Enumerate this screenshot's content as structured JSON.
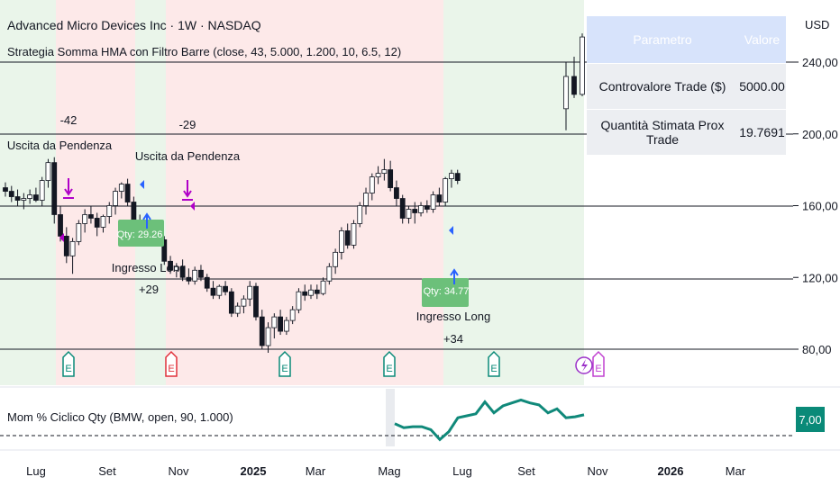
{
  "header": {
    "title": "Advanced Micro Devices Inc · 1W · NASDAQ",
    "subtitle": "Strategia Somma HMA con Filtro Barre (close, 43, 5.000, 1.200, 10, 6.5, 12)",
    "currency": "USD"
  },
  "table": {
    "headers": [
      "Parametro",
      "Valore"
    ],
    "rows": [
      {
        "label": "Controvalore Trade ($)",
        "value": "5000.00"
      },
      {
        "label": "Quantità Stimata Prox Trade",
        "value": "19.7691"
      }
    ]
  },
  "indicator": {
    "label": "Mom % Ciclico Qty (BMW, open, 90, 1.000)",
    "value_badge": "7,00",
    "badge_color": "#0a8a78",
    "line_color": "#10897a"
  },
  "colors": {
    "up": "#ffffff",
    "down": "#131722",
    "green_zone": "#eaf5ea",
    "red_zone": "#fde9e9",
    "long_tag": "#6cc07a",
    "exit_marker": "#b000c8",
    "entry_arrow": "#2962ff"
  },
  "chart_data": {
    "type": "candlestick",
    "y_axis": {
      "ticks": [
        "80,00",
        "120,00",
        "160,00",
        "200,00",
        "240,00"
      ],
      "values": [
        80,
        120,
        160,
        200,
        240
      ],
      "ylim": [
        77,
        262
      ]
    },
    "x_axis": {
      "ticks": [
        "Lug",
        "Set",
        "Nov",
        "2025",
        "Mar",
        "Mag",
        "Lug",
        "Set",
        "Nov",
        "2026",
        "Mar"
      ],
      "bold": [
        "2025",
        "2026"
      ]
    },
    "candles": [
      {
        "o": 170,
        "h": 173,
        "l": 165,
        "c": 168
      },
      {
        "o": 168,
        "h": 171,
        "l": 162,
        "c": 165
      },
      {
        "o": 165,
        "h": 169,
        "l": 160,
        "c": 163
      },
      {
        "o": 163,
        "h": 167,
        "l": 158,
        "c": 164
      },
      {
        "o": 164,
        "h": 169,
        "l": 161,
        "c": 166
      },
      {
        "o": 166,
        "h": 170,
        "l": 162,
        "c": 163
      },
      {
        "o": 163,
        "h": 176,
        "l": 160,
        "c": 174
      },
      {
        "o": 174,
        "h": 186,
        "l": 170,
        "c": 184
      },
      {
        "o": 184,
        "h": 187,
        "l": 150,
        "c": 155
      },
      {
        "o": 155,
        "h": 160,
        "l": 140,
        "c": 143
      },
      {
        "o": 143,
        "h": 148,
        "l": 128,
        "c": 132
      },
      {
        "o": 132,
        "h": 142,
        "l": 122,
        "c": 140
      },
      {
        "o": 140,
        "h": 152,
        "l": 138,
        "c": 150
      },
      {
        "o": 150,
        "h": 158,
        "l": 145,
        "c": 155
      },
      {
        "o": 155,
        "h": 160,
        "l": 150,
        "c": 153
      },
      {
        "o": 153,
        "h": 156,
        "l": 143,
        "c": 148
      },
      {
        "o": 148,
        "h": 155,
        "l": 145,
        "c": 154
      },
      {
        "o": 154,
        "h": 162,
        "l": 150,
        "c": 160
      },
      {
        "o": 160,
        "h": 170,
        "l": 155,
        "c": 168
      },
      {
        "o": 168,
        "h": 173,
        "l": 164,
        "c": 172
      },
      {
        "o": 172,
        "h": 175,
        "l": 160,
        "c": 162
      },
      {
        "o": 162,
        "h": 165,
        "l": 147,
        "c": 150
      },
      {
        "o": 150,
        "h": 155,
        "l": 145,
        "c": 148
      },
      {
        "o": 148,
        "h": 152,
        "l": 142,
        "c": 145
      },
      {
        "o": 145,
        "h": 148,
        "l": 140,
        "c": 143
      },
      {
        "o": 143,
        "h": 146,
        "l": 138,
        "c": 141
      },
      {
        "o": 141,
        "h": 143,
        "l": 127,
        "c": 129
      },
      {
        "o": 129,
        "h": 132,
        "l": 122,
        "c": 124
      },
      {
        "o": 124,
        "h": 128,
        "l": 120,
        "c": 126
      },
      {
        "o": 126,
        "h": 130,
        "l": 118,
        "c": 120
      },
      {
        "o": 120,
        "h": 125,
        "l": 116,
        "c": 118
      },
      {
        "o": 118,
        "h": 126,
        "l": 116,
        "c": 124
      },
      {
        "o": 124,
        "h": 127,
        "l": 118,
        "c": 120
      },
      {
        "o": 120,
        "h": 122,
        "l": 112,
        "c": 114
      },
      {
        "o": 114,
        "h": 118,
        "l": 108,
        "c": 110
      },
      {
        "o": 110,
        "h": 116,
        "l": 108,
        "c": 115
      },
      {
        "o": 115,
        "h": 118,
        "l": 110,
        "c": 112
      },
      {
        "o": 112,
        "h": 114,
        "l": 98,
        "c": 100
      },
      {
        "o": 100,
        "h": 106,
        "l": 98,
        "c": 104
      },
      {
        "o": 104,
        "h": 110,
        "l": 100,
        "c": 108
      },
      {
        "o": 108,
        "h": 118,
        "l": 104,
        "c": 115
      },
      {
        "o": 115,
        "h": 117,
        "l": 96,
        "c": 98
      },
      {
        "o": 98,
        "h": 102,
        "l": 80,
        "c": 82
      },
      {
        "o": 82,
        "h": 95,
        "l": 78,
        "c": 92
      },
      {
        "o": 92,
        "h": 100,
        "l": 86,
        "c": 98
      },
      {
        "o": 98,
        "h": 102,
        "l": 88,
        "c": 90
      },
      {
        "o": 90,
        "h": 98,
        "l": 88,
        "c": 96
      },
      {
        "o": 96,
        "h": 104,
        "l": 94,
        "c": 102
      },
      {
        "o": 102,
        "h": 114,
        "l": 100,
        "c": 112
      },
      {
        "o": 112,
        "h": 116,
        "l": 107,
        "c": 110
      },
      {
        "o": 110,
        "h": 116,
        "l": 108,
        "c": 113
      },
      {
        "o": 113,
        "h": 116,
        "l": 108,
        "c": 111
      },
      {
        "o": 111,
        "h": 120,
        "l": 110,
        "c": 118
      },
      {
        "o": 118,
        "h": 128,
        "l": 116,
        "c": 126
      },
      {
        "o": 126,
        "h": 136,
        "l": 122,
        "c": 134
      },
      {
        "o": 134,
        "h": 148,
        "l": 130,
        "c": 146
      },
      {
        "o": 146,
        "h": 150,
        "l": 136,
        "c": 138
      },
      {
        "o": 138,
        "h": 152,
        "l": 136,
        "c": 150
      },
      {
        "o": 150,
        "h": 162,
        "l": 148,
        "c": 160
      },
      {
        "o": 160,
        "h": 170,
        "l": 155,
        "c": 167
      },
      {
        "o": 167,
        "h": 178,
        "l": 163,
        "c": 176
      },
      {
        "o": 176,
        "h": 182,
        "l": 172,
        "c": 178
      },
      {
        "o": 178,
        "h": 186,
        "l": 174,
        "c": 180
      },
      {
        "o": 180,
        "h": 185,
        "l": 168,
        "c": 170
      },
      {
        "o": 170,
        "h": 174,
        "l": 160,
        "c": 164
      },
      {
        "o": 164,
        "h": 166,
        "l": 150,
        "c": 153
      },
      {
        "o": 153,
        "h": 160,
        "l": 150,
        "c": 158
      },
      {
        "o": 158,
        "h": 162,
        "l": 150,
        "c": 156
      },
      {
        "o": 156,
        "h": 162,
        "l": 154,
        "c": 160
      },
      {
        "o": 160,
        "h": 163,
        "l": 156,
        "c": 158
      },
      {
        "o": 158,
        "h": 168,
        "l": 156,
        "c": 166
      },
      {
        "o": 166,
        "h": 170,
        "l": 160,
        "c": 162
      },
      {
        "o": 162,
        "h": 176,
        "l": 160,
        "c": 175
      },
      {
        "o": 175,
        "h": 180,
        "l": 170,
        "c": 178
      },
      {
        "o": 178,
        "h": 180,
        "l": 172,
        "c": 174
      },
      {
        "o": 214,
        "h": 240,
        "l": 202,
        "c": 232
      },
      {
        "o": 232,
        "h": 243,
        "l": 220,
        "c": 222
      },
      {
        "o": 222,
        "h": 256,
        "l": 221,
        "c": 254
      }
    ],
    "signals": [
      {
        "text": "-42"
      },
      {
        "text": "Uscita da Pendenza"
      },
      {
        "text": "-29"
      },
      {
        "text": "Uscita da Pendenza"
      },
      {
        "text": "Qty: 29.26"
      },
      {
        "text": "Ingresso Long"
      },
      {
        "text": "+29"
      },
      {
        "text": "Qty: 34.77"
      },
      {
        "text": "Ingresso Long"
      },
      {
        "text": "+34"
      }
    ],
    "events": [
      "E",
      "E",
      "E",
      "E",
      "E",
      "E"
    ],
    "indicator_series": [
      6.2,
      5.8,
      5.9,
      5.9,
      5.6,
      4.6,
      5.4,
      6.8,
      7.0,
      7.2,
      8.4,
      7.3,
      8.0,
      8.3,
      8.6,
      8.3,
      8.1,
      7.3,
      7.7,
      6.8,
      6.9,
      7.1
    ]
  }
}
